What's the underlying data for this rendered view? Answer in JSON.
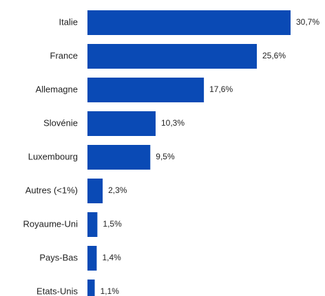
{
  "chart_data": {
    "type": "bar",
    "orientation": "horizontal",
    "categories": [
      "Italie",
      "France",
      "Allemagne",
      "Slovénie",
      "Luxembourg",
      "Autres (<1%)",
      "Royaume-Uni",
      "Pays-Bas",
      "Etats-Unis"
    ],
    "values": [
      30.7,
      25.6,
      17.6,
      10.3,
      9.5,
      2.3,
      1.5,
      1.4,
      1.1
    ],
    "value_labels": [
      "30,7%",
      "25,6%",
      "17,6%",
      "10,3%",
      "9,5%",
      "2,3%",
      "1,5%",
      "1,4%",
      "1,1%"
    ],
    "color": "#0a4ab5"
  }
}
